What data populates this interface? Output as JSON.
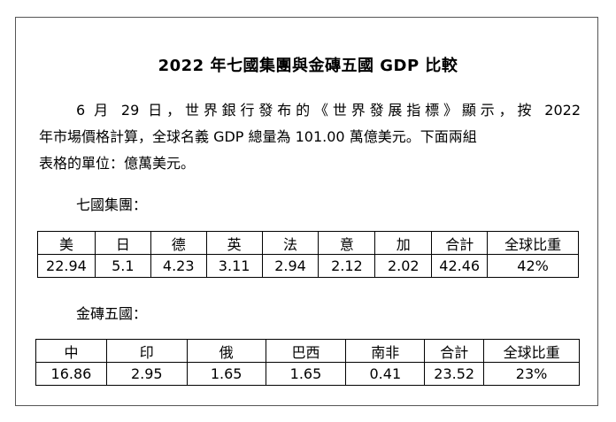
{
  "title": "2022 年七國集團與金磚五國 GDP 比較",
  "paragraph": {
    "line1": "6 月 29 日，世界銀行發布的《世界發展指標》顯示，按 2022",
    "line2": "年市場價格計算，全球名義 GDP 總量為 101.00 萬億美元。下面兩組",
    "line3": "表格的單位：億萬美元。"
  },
  "g7": {
    "caption": "七國集團：",
    "headers": [
      "美",
      "日",
      "德",
      "英",
      "法",
      "意",
      "加",
      "合計",
      "全球比重"
    ],
    "values": [
      "22.94",
      "5.1",
      "4.23",
      "3.11",
      "2.94",
      "2.12",
      "2.02",
      "42.46",
      "42%"
    ]
  },
  "brics": {
    "caption": "金磚五國：",
    "headers": [
      "中",
      "印",
      "俄",
      "巴西",
      "南非",
      "合計",
      "全球比重"
    ],
    "values": [
      "16.86",
      "2.95",
      "1.65",
      "1.65",
      "0.41",
      "23.52",
      "23%"
    ]
  }
}
